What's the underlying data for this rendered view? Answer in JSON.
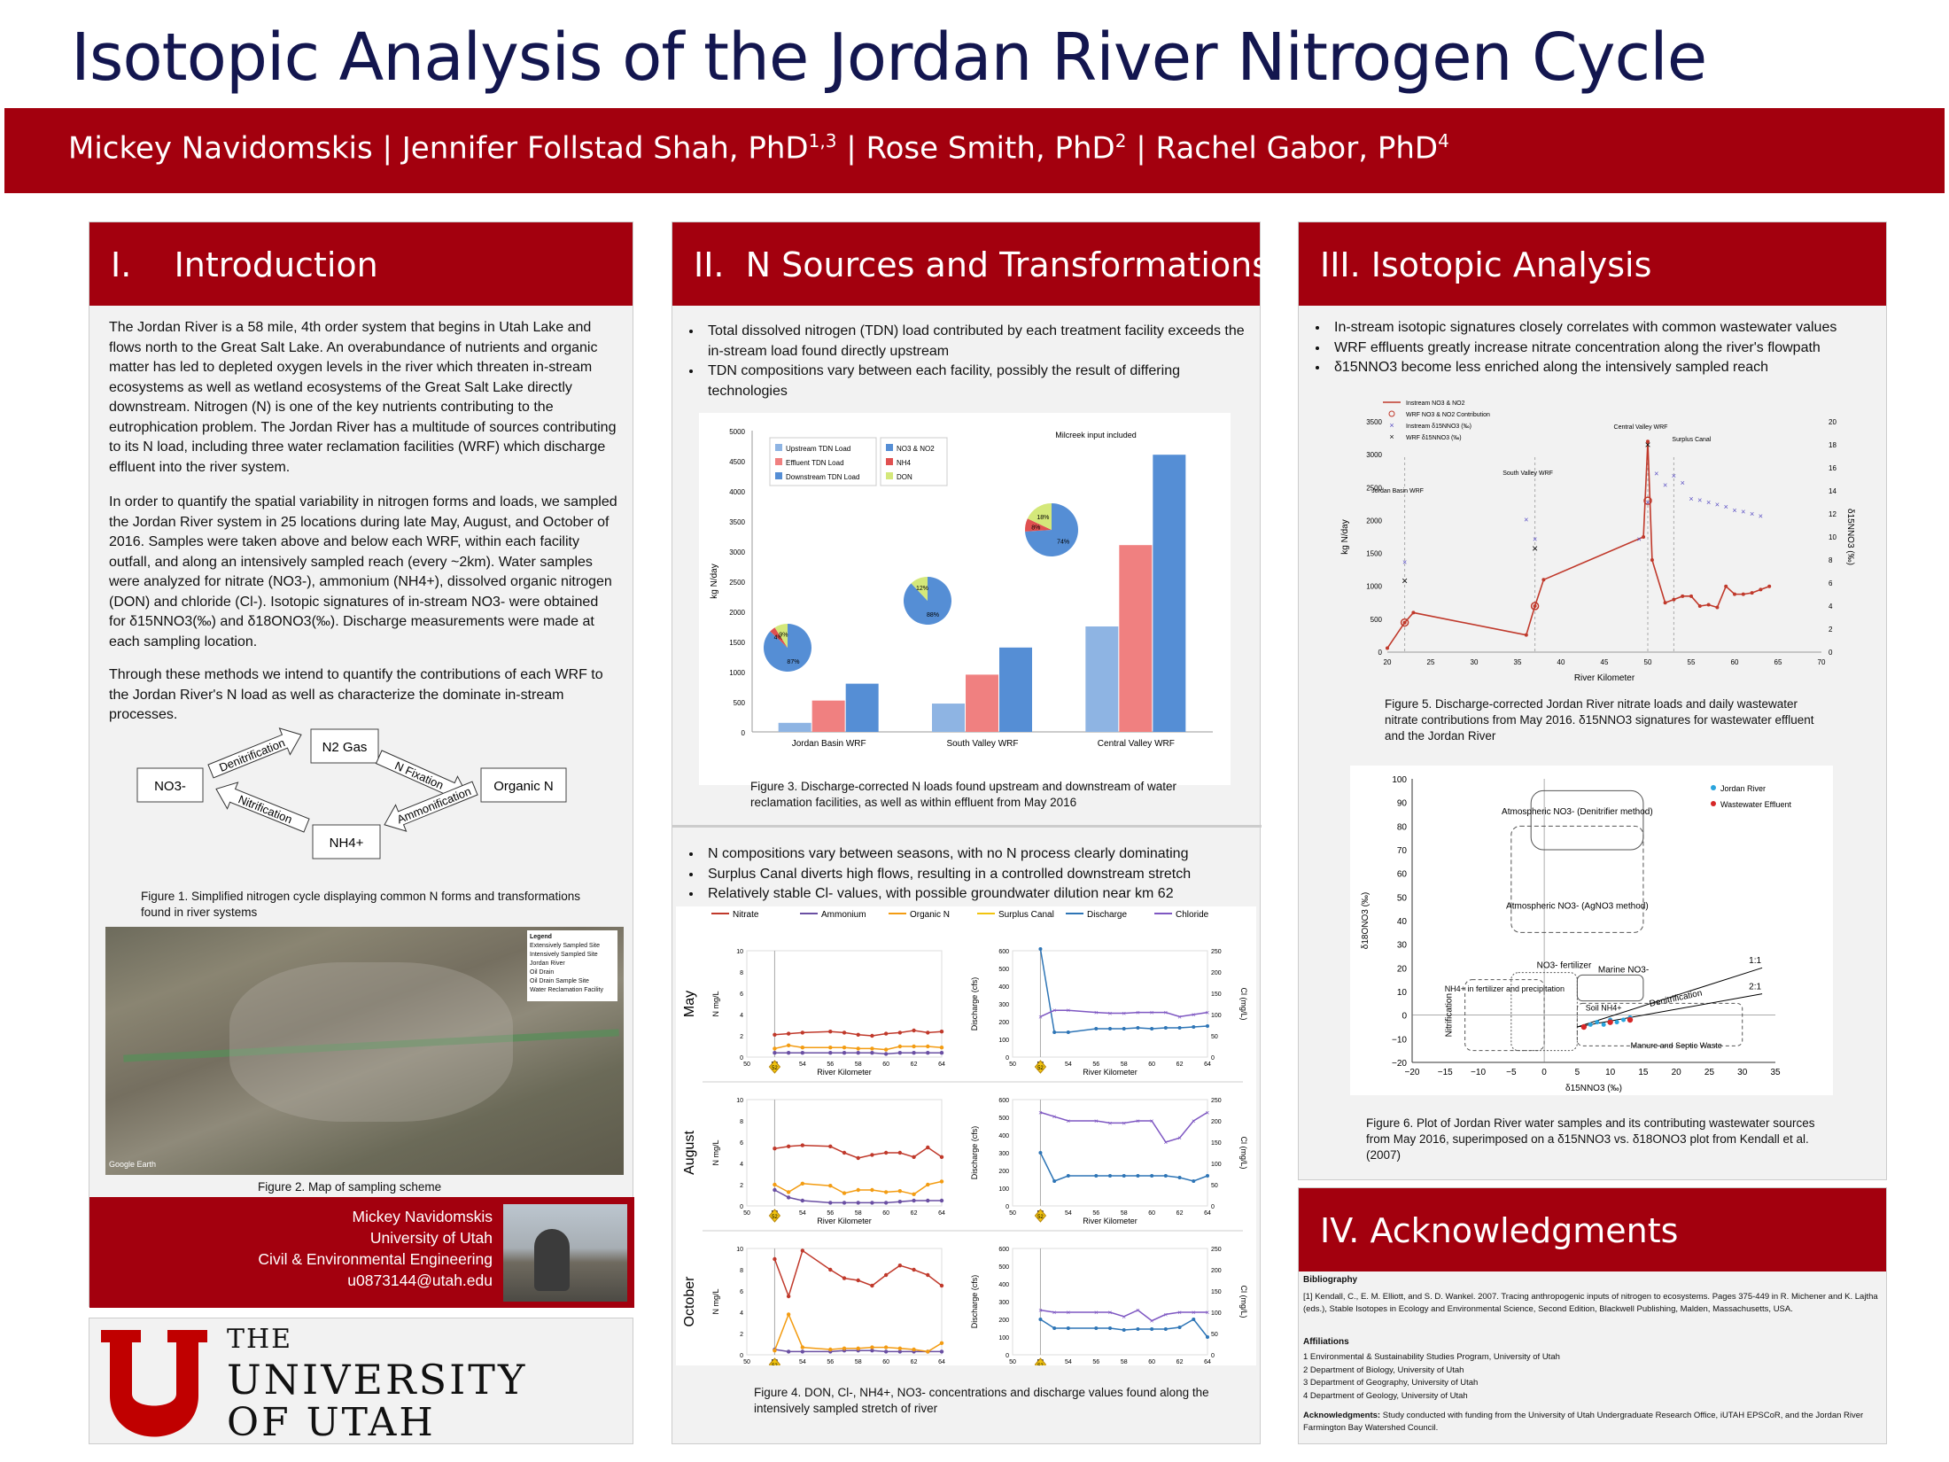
{
  "title": "Isotopic Analysis of the Jordan River Nitrogen Cycle",
  "authors": [
    {
      "name": "Mickey Navidomskis",
      "sup": ""
    },
    {
      "name": "Jennifer Follstad Shah, PhD",
      "sup": "1,3"
    },
    {
      "name": "Rose Smith, PhD",
      "sup": "2"
    },
    {
      "name": "Rachel Gabor, PhD",
      "sup": "4"
    }
  ],
  "sec1": {
    "heading": "I.    Introduction",
    "p1": "The Jordan River is a 58 mile, 4th order system that begins in Utah Lake and flows north to the Great Salt Lake. An overabundance of nutrients and organic matter has led to depleted oxygen levels in the river which threaten in-stream ecosystems as well as wetland ecosystems of the Great Salt Lake directly downstream. Nitrogen (N) is one of the key nutrients contributing to the eutrophication problem. The Jordan River has a multitude of sources contributing to its N load, including three water reclamation facilities (WRF) which discharge effluent into the river system.",
    "p2": "In order to quantify the spatial variability in nitrogen forms and loads, we sampled the Jordan River system in 25 locations during late May, August, and October of 2016. Samples were taken above and below each WRF, within each facility outfall, and along an intensively sampled reach (every ~2km). Water samples were analyzed for nitrate (NO3-), ammonium (NH4+), dissolved organic nitrogen (DON) and chloride (Cl-). Isotopic signatures of in-stream NO3- were obtained for δ15NNO3(‰) and δ18ONO3(‰). Discharge measurements were made at each sampling location.",
    "p3": "Through these methods we intend to quantify the contributions of each WRF to the Jordan River's N load as well as characterize the dominate in-stream processes.",
    "cycle": {
      "n2": "N2 Gas",
      "no3": "NO3-",
      "org": "Organic N",
      "nh4": "NH4+",
      "denit": "Denitrification",
      "nfix": "N Fixation",
      "nitr": "Nitrification",
      "ammon": "Ammonification"
    },
    "fig1": "Figure 1. Simplified nitrogen cycle displaying common N forms and transformations found in river systems",
    "fig2": "Figure 2. Map of sampling scheme",
    "map_legend": [
      "Legend",
      "Extensively Sampled Site",
      "Intensively Sampled Site",
      "Jordan River",
      "Oil Drain",
      "Oil Drain Sample Site",
      "Water Reclamation Facility"
    ],
    "map_credit": "Google Earth",
    "contact": [
      "Mickey Navidomskis",
      "University of Utah",
      "Civil & Environmental Engineering",
      "u0873144@utah.edu"
    ],
    "logo": [
      "THE",
      "UNIVERSITY",
      "OF UTAH"
    ]
  },
  "sec2": {
    "heading": "II.  N Sources and Transformations",
    "bullets1": [
      "Total dissolved nitrogen (TDN) load contributed by each treatment facility exceeds the in-stream load found directly upstream",
      "TDN compositions vary between each facility, possibly the result of differing technologies"
    ],
    "fig3": "Figure 3. Discharge-corrected N loads found upstream and downstream of water reclamation facilities, as well as within effluent from May 2016",
    "bullets2": [
      "N compositions vary between seasons, with no N process clearly dominating",
      "Surplus Canal diverts high flows, resulting in a controlled downstream stretch",
      "Relatively stable Cl- values, with possible groundwater dilution near km 62"
    ],
    "legend4": [
      "Nitrate",
      "Ammonium",
      "Organic N",
      "Surplus Canal",
      "Discharge",
      "Chloride"
    ],
    "months": [
      "May",
      "August",
      "October"
    ],
    "fig4": "Figure 4. DON, Cl-, NH4+, NO3- concentrations and discharge values found along the intensively sampled stretch of river"
  },
  "sec3": {
    "heading": "III. Isotopic Analysis",
    "bullets": [
      "In-stream isotopic signatures closely correlates with common wastewater values",
      "WRF effluents greatly increase nitrate concentration along the river's flowpath",
      "δ15NNO3 become less enriched along the intensively sampled reach"
    ],
    "fig5": "Figure 5. Discharge-corrected Jordan River nitrate loads and daily wastewater nitrate contributions from May 2016. δ15NNO3 signatures for wastewater effluent and the Jordan River",
    "fig6": "Figure 6. Plot of Jordan River water samples and its contributing wastewater sources from May 2016, superimposed on a  δ15NNO3 vs. δ18ONO3 plot from Kendall et al. (2007)"
  },
  "sec4": {
    "heading": "IV. Acknowledgments",
    "bib_h": "Bibliography",
    "bib": "[1] Kendall, C., E. M. Elliott, and S. D. Wankel. 2007. Tracing anthropogenic inputs of nitrogen to ecosystems. Pages 375-449 in R. Michener and K. Lajtha (eds.), Stable Isotopes in Ecology and Environmental Science, Second Edition, Blackwell Publishing, Malden, Massachusetts, USA.",
    "aff_h": "Affiliations",
    "aff": [
      "1 Environmental & Sustainability Studies Program, University of Utah",
      "2 Department of Biology, University of Utah",
      "3 Department of Geography, University of Utah",
      "4 Department of Geology, University of Utah"
    ],
    "ack_h": "Acknowledgments:",
    "ack": "Study conducted with funding from the University of Utah Undergraduate Research Office, iUTAH EPSCoR, and the Jordan River Farmington Bay Watershed Council."
  },
  "chart_data": [
    {
      "type": "bar",
      "id": "figure-3",
      "categories": [
        "Jordan Basin WRF",
        "South Valley WRF",
        "Central Valley WRF"
      ],
      "series": [
        {
          "name": "Upstream TDN Load",
          "values": [
            150,
            470,
            1750
          ]
        },
        {
          "name": "Effluent TDN Load",
          "values": [
            520,
            950,
            3100
          ]
        },
        {
          "name": "Downstream TDN Load",
          "values": [
            800,
            1400,
            4600
          ]
        }
      ],
      "ylabel": "kg N/day",
      "ylim": [
        0,
        5000
      ],
      "yticks": [
        0,
        500,
        1000,
        1500,
        2000,
        2500,
        3000,
        3500,
        4000,
        4500,
        5000
      ],
      "annotation": "Milcreek input included",
      "pies": [
        {
          "facility": "Jordan Basin WRF",
          "NO3_NO2": 87,
          "NH4": 4,
          "DON": 9
        },
        {
          "facility": "South Valley WRF",
          "NO3_NO2": 88,
          "NH4": 0,
          "DON": 12
        },
        {
          "facility": "Central Valley WRF",
          "NO3_NO2": 74,
          "NH4": 8,
          "DON": 18
        }
      ],
      "pie_legend": [
        "NO3 & NO2",
        "NH4",
        "DON"
      ]
    },
    {
      "type": "line",
      "id": "figure-4",
      "x": [
        52,
        53,
        54,
        56,
        57,
        58,
        59,
        60,
        61,
        62,
        63,
        64
      ],
      "xlabel": "River Kilometer",
      "panels": [
        {
          "month": "May",
          "nitrate": [
            2.1,
            2.2,
            2.3,
            2.4,
            2.3,
            2.1,
            2.0,
            2.2,
            2.3,
            2.5,
            2.3,
            2.4
          ],
          "ammonium": [
            0.4,
            0.4,
            0.4,
            0.4,
            0.4,
            0.4,
            0.4,
            0.3,
            0.4,
            0.4,
            0.4,
            0.4
          ],
          "organic": [
            0.8,
            1.1,
            0.9,
            0.9,
            0.9,
            0.8,
            0.8,
            0.7,
            1.0,
            1.0,
            1.0,
            0.9
          ],
          "discharge": [
            610,
            140,
            140,
            160,
            160,
            160,
            165,
            160,
            165,
            165,
            170,
            175
          ],
          "chloride": [
            95,
            110,
            110,
            105,
            103,
            103,
            105,
            105,
            105,
            95,
            100,
            105
          ]
        },
        {
          "month": "August",
          "nitrate": [
            5.4,
            5.6,
            5.7,
            5.6,
            5.0,
            4.5,
            4.8,
            5.0,
            5.0,
            4.6,
            5.5,
            4.6
          ],
          "ammonium": [
            1.5,
            0.8,
            0.5,
            0.3,
            0.3,
            0.3,
            0.3,
            0.3,
            0.4,
            0.5,
            0.5,
            0.5
          ],
          "organic": [
            2.0,
            1.3,
            2.1,
            1.9,
            1.2,
            1.5,
            1.5,
            1.3,
            1.4,
            1.1,
            2.0,
            2.3
          ],
          "discharge": [
            300,
            140,
            170,
            170,
            170,
            170,
            170,
            170,
            170,
            160,
            140,
            170
          ],
          "chloride": [
            220,
            210,
            200,
            200,
            195,
            195,
            200,
            200,
            150,
            160,
            200,
            220
          ],
          "chloride_dip": {
            "x": 61,
            "y": 130
          }
        },
        {
          "month": "October",
          "nitrate": [
            9.0,
            5.5,
            9.8,
            8.0,
            7.2,
            7.0,
            6.5,
            7.5,
            8.4,
            8.0,
            7.5,
            6.5
          ],
          "ammonium": [
            0.5,
            0.3,
            0.3,
            0.3,
            0.4,
            0.4,
            0.4,
            0.3,
            0.3,
            0.3,
            0.3,
            0.3
          ],
          "organic": [
            0.4,
            3.8,
            0.7,
            0.5,
            0.6,
            0.6,
            0.7,
            0.7,
            0.6,
            0.5,
            0.3,
            1.1
          ],
          "discharge": [
            200,
            150,
            150,
            150,
            150,
            140,
            145,
            145,
            145,
            155,
            200,
            100
          ],
          "chloride": [
            105,
            100,
            100,
            100,
            100,
            90,
            105,
            80,
            95,
            100,
            100,
            100
          ]
        }
      ],
      "left_ylabel": "N mg/L",
      "disch_ylabel": "Discharge (cfs)",
      "cl_ylabel": "Cl (mg/L)"
    },
    {
      "type": "line",
      "id": "figure-5",
      "xlabel": "River Kilometer",
      "ylabel": "kg N/day",
      "y2label": "δ15NNO3 (‰)",
      "xlim": [
        20,
        70
      ],
      "ylim": [
        0,
        3500
      ],
      "y2lim": [
        0,
        20
      ],
      "series": [
        {
          "name": "Instream NO3 & NO2",
          "x": [
            20,
            22,
            23,
            36,
            37,
            38,
            49.5,
            50,
            50.5,
            52,
            53,
            54,
            55,
            56,
            57,
            58,
            59,
            60,
            61,
            62,
            63,
            64
          ],
          "y": [
            60,
            450,
            600,
            260,
            700,
            1100,
            1750,
            3200,
            1400,
            750,
            800,
            850,
            850,
            700,
            720,
            680,
            1000,
            880,
            880,
            900,
            950,
            1000
          ]
        },
        {
          "name": "WRF NO3 & NO2 Contribution",
          "x": [
            22,
            37,
            50
          ],
          "y": [
            450,
            700,
            2300
          ]
        },
        {
          "name": "Instream δ15NNO3 (‰)",
          "x": [
            22,
            36,
            37,
            49,
            50,
            51,
            52,
            53,
            54,
            55,
            56,
            57,
            58,
            59,
            60,
            61,
            62,
            63
          ],
          "y": [
            7.8,
            11.5,
            9.8,
            9.8,
            13,
            15.5,
            14.5,
            15.3,
            14.7,
            13.3,
            13.2,
            13,
            12.8,
            12.6,
            12.3,
            12.2,
            12,
            11.8
          ]
        },
        {
          "name": "WRF δ15NNO3 (‰)",
          "x": [
            22,
            37,
            50
          ],
          "y": [
            6.2,
            9,
            18
          ]
        }
      ],
      "labels": [
        "Jordan Basin WRF",
        "South Valley WRF",
        "Central Valley WRF",
        "Surplus Canal"
      ]
    },
    {
      "type": "scatter",
      "id": "figure-6",
      "xlabel": "δ15NNO3 (‰)",
      "ylabel": "δ18ONO3 (‰)",
      "xlim": [
        -20,
        35
      ],
      "ylim": [
        -20,
        100
      ],
      "xticks": [
        -20,
        -15,
        -10,
        -5,
        0,
        5,
        10,
        15,
        20,
        25,
        30,
        35
      ],
      "yticks": [
        -20,
        -10,
        0,
        10,
        20,
        30,
        40,
        50,
        60,
        70,
        80,
        90,
        100
      ],
      "series": [
        {
          "name": "Jordan River",
          "x": [
            7,
            8,
            9,
            10,
            11,
            12,
            13
          ],
          "y": [
            -4,
            -3,
            -4,
            -2,
            -3,
            -2,
            -1
          ]
        },
        {
          "name": "Wastewater Effluent",
          "x": [
            6,
            10,
            13
          ],
          "y": [
            -5,
            -3,
            -2
          ]
        }
      ],
      "regions": [
        "Atmospheric NO3- (Denitrifier method)",
        "Atmospheric NO3- (AgNO3 method)",
        "NO3- fertilizer",
        "Marine NO3-",
        "NH4+ in fertilizer and precipitation",
        "Soil NH4+",
        "Manure and Septic Waste",
        "Nitrification",
        "Denitrification",
        "1:1",
        "2:1"
      ]
    }
  ]
}
